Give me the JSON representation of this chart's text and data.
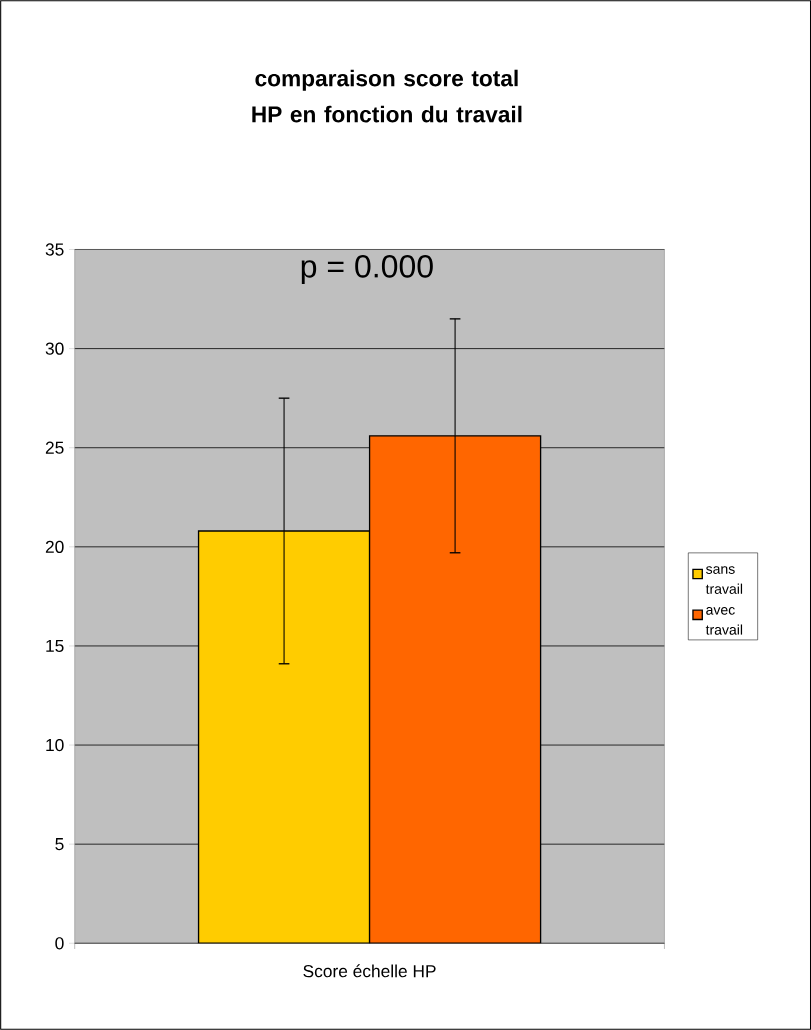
{
  "chart_data": {
    "type": "bar",
    "title": "comparaison score total HP en fonction du travail",
    "categories": [
      "Score échelle HP"
    ],
    "series": [
      {
        "name": "sans travail",
        "color": "#ffcc00",
        "values": [
          20.8
        ],
        "errors": [
          6.7
        ]
      },
      {
        "name": "avec travail",
        "color": "#ff6600",
        "values": [
          25.6
        ],
        "errors": [
          5.9
        ]
      }
    ],
    "ylim": [
      0,
      35
    ],
    "yticks": [
      0,
      5,
      10,
      15,
      20,
      25,
      30,
      35
    ],
    "grid": "y",
    "legend": "right",
    "annotations": [
      "p = 0.000"
    ]
  }
}
